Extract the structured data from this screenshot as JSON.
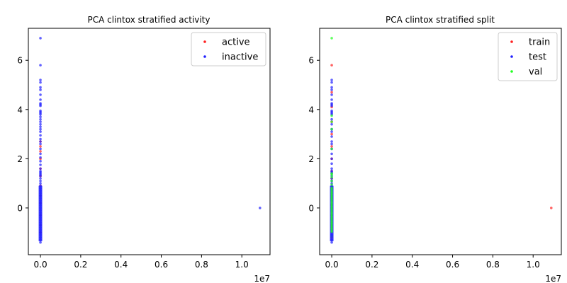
{
  "chart_data": [
    {
      "type": "scatter",
      "title": "PCA clintox stratified activity",
      "xlabel": "",
      "ylabel": "",
      "x_multiplier_label": "1e7",
      "xlim": [
        -0.06,
        1.14
      ],
      "ylim": [
        -1.9,
        7.3
      ],
      "xticks": [
        0,
        0.2,
        0.4,
        0.6,
        0.8,
        1.0
      ],
      "xtick_labels": [
        "0.0",
        "0.2",
        "0.4",
        "0.6",
        "0.8",
        "1.0"
      ],
      "yticks": [
        0,
        2,
        4,
        6
      ],
      "ytick_labels": [
        "0",
        "2",
        "4",
        "6"
      ],
      "grid": false,
      "legend_position": "top-right",
      "series": [
        {
          "name": "active",
          "color": "#ff2020",
          "points": [
            [
              0,
              2.7
            ],
            [
              0,
              2.5
            ],
            [
              0,
              2.3
            ],
            [
              0,
              2.0
            ],
            [
              0,
              1.6
            ],
            [
              0,
              1.3
            ],
            [
              0,
              0.9
            ],
            [
              0,
              0.5
            ],
            [
              0,
              0.2
            ],
            [
              0,
              -0.3
            ],
            [
              0,
              -0.7
            ],
            [
              0,
              -1.0
            ]
          ]
        },
        {
          "name": "inactive",
          "color": "#2020ff",
          "points": [
            [
              0,
              6.9
            ],
            [
              0,
              5.8
            ],
            [
              0,
              5.2
            ],
            [
              0,
              5.1
            ],
            [
              0,
              4.9
            ],
            [
              0,
              4.8
            ],
            [
              0,
              4.6
            ],
            [
              0,
              4.4
            ],
            [
              0,
              4.25
            ],
            [
              0,
              4.2
            ],
            [
              0,
              4.15
            ],
            [
              0,
              3.95
            ],
            [
              0,
              3.9
            ],
            [
              0,
              3.85
            ],
            [
              0,
              3.8
            ],
            [
              0,
              3.7
            ],
            [
              0,
              3.6
            ],
            [
              0,
              3.5
            ],
            [
              0,
              3.4
            ],
            [
              0,
              3.3
            ],
            [
              0,
              3.2
            ],
            [
              0,
              3.1
            ],
            [
              0,
              2.95
            ],
            [
              0,
              2.8
            ],
            [
              0,
              2.7
            ],
            [
              0,
              2.6
            ],
            [
              0,
              2.4
            ],
            [
              0,
              2.2
            ],
            [
              0,
              2.05
            ],
            [
              0,
              1.9
            ],
            [
              0,
              1.75
            ],
            [
              0,
              1.6
            ],
            [
              0,
              1.5
            ],
            [
              0,
              1.45
            ],
            [
              0,
              1.4
            ],
            [
              0,
              1.35
            ],
            [
              0,
              1.3
            ],
            [
              0,
              1.2
            ],
            [
              0,
              1.1
            ],
            [
              0,
              1.0
            ],
            [
              0,
              0.9
            ],
            [
              0,
              0.8
            ],
            [
              0,
              0.7
            ],
            [
              0,
              0.6
            ],
            [
              0,
              0.5
            ],
            [
              0,
              0.4
            ],
            [
              0,
              0.3
            ],
            [
              0,
              0.2
            ],
            [
              0,
              0.1
            ],
            [
              0,
              0.0
            ],
            [
              0,
              -0.1
            ],
            [
              0,
              -0.2
            ],
            [
              0,
              -0.3
            ],
            [
              0,
              -0.4
            ],
            [
              0,
              -0.5
            ],
            [
              0,
              -0.6
            ],
            [
              0,
              -0.7
            ],
            [
              0,
              -0.8
            ],
            [
              0,
              -0.9
            ],
            [
              0,
              -1.0
            ],
            [
              0,
              -1.1
            ],
            [
              0,
              -1.2
            ],
            [
              0,
              -1.3
            ],
            [
              0,
              -1.4
            ],
            [
              1.09,
              0.0
            ]
          ]
        }
      ]
    },
    {
      "type": "scatter",
      "title": "PCA clintox stratified split",
      "xlabel": "",
      "ylabel": "",
      "x_multiplier_label": "1e7",
      "xlim": [
        -0.06,
        1.14
      ],
      "ylim": [
        -1.9,
        7.3
      ],
      "xticks": [
        0,
        0.2,
        0.4,
        0.6,
        0.8,
        1.0
      ],
      "xtick_labels": [
        "0.0",
        "0.2",
        "0.4",
        "0.6",
        "0.8",
        "1.0"
      ],
      "yticks": [
        0,
        2,
        4,
        6
      ],
      "ytick_labels": [
        "0",
        "2",
        "4",
        "6"
      ],
      "grid": false,
      "legend_position": "top-right",
      "series": [
        {
          "name": "train",
          "color": "#ff2020",
          "points": [
            [
              0,
              5.8
            ],
            [
              0,
              4.7
            ],
            [
              0,
              4.1
            ],
            [
              0,
              3.5
            ],
            [
              0,
              3.0
            ],
            [
              0,
              2.5
            ],
            [
              0,
              2.0
            ],
            [
              0,
              1.5
            ],
            [
              0,
              1.2
            ],
            [
              0,
              0.8
            ],
            [
              0,
              0.4
            ],
            [
              0,
              0.0
            ],
            [
              0,
              -0.4
            ],
            [
              0,
              -0.8
            ],
            [
              0,
              -1.2
            ],
            [
              1.09,
              0.0
            ]
          ]
        },
        {
          "name": "test",
          "color": "#2020ff",
          "points": [
            [
              0,
              5.2
            ],
            [
              0,
              5.1
            ],
            [
              0,
              4.9
            ],
            [
              0,
              4.8
            ],
            [
              0,
              4.6
            ],
            [
              0,
              4.4
            ],
            [
              0,
              4.25
            ],
            [
              0,
              4.2
            ],
            [
              0,
              4.15
            ],
            [
              0,
              3.95
            ],
            [
              0,
              3.9
            ],
            [
              0,
              3.85
            ],
            [
              0,
              3.8
            ],
            [
              0,
              3.6
            ],
            [
              0,
              3.4
            ],
            [
              0,
              3.2
            ],
            [
              0,
              3.1
            ],
            [
              0,
              2.9
            ],
            [
              0,
              2.7
            ],
            [
              0,
              2.6
            ],
            [
              0,
              2.4
            ],
            [
              0,
              2.2
            ],
            [
              0,
              2.0
            ],
            [
              0,
              1.8
            ],
            [
              0,
              1.6
            ],
            [
              0,
              1.5
            ],
            [
              0,
              1.45
            ],
            [
              0,
              1.4
            ],
            [
              0,
              1.3
            ],
            [
              0,
              1.2
            ],
            [
              0,
              1.1
            ],
            [
              0,
              1.0
            ],
            [
              0,
              0.9
            ],
            [
              0,
              0.7
            ],
            [
              0,
              0.5
            ],
            [
              0,
              0.3
            ],
            [
              0,
              0.1
            ],
            [
              0,
              -0.1
            ],
            [
              0,
              -0.3
            ],
            [
              0,
              -0.5
            ],
            [
              0,
              -0.7
            ],
            [
              0,
              -0.9
            ],
            [
              0,
              -1.1
            ],
            [
              0,
              -1.3
            ],
            [
              0,
              -1.4
            ]
          ]
        },
        {
          "name": "val",
          "color": "#20ff20",
          "points": [
            [
              0,
              6.9
            ],
            [
              0,
              3.75
            ],
            [
              0,
              3.5
            ],
            [
              0,
              3.2
            ],
            [
              0,
              2.4
            ],
            [
              0,
              1.4
            ],
            [
              0,
              1.35
            ],
            [
              0,
              1.25
            ],
            [
              0,
              1.1
            ],
            [
              0,
              0.95
            ],
            [
              0,
              0.85
            ],
            [
              0,
              0.75
            ],
            [
              0,
              0.6
            ],
            [
              0,
              0.45
            ],
            [
              0,
              0.3
            ],
            [
              0,
              0.15
            ],
            [
              0,
              0.0
            ],
            [
              0,
              -0.15
            ],
            [
              0,
              -0.3
            ],
            [
              0,
              -0.45
            ],
            [
              0,
              -0.6
            ],
            [
              0,
              -0.75
            ],
            [
              0,
              -0.9
            ],
            [
              0,
              -1.0
            ],
            [
              0,
              -1.15
            ]
          ]
        }
      ]
    }
  ]
}
